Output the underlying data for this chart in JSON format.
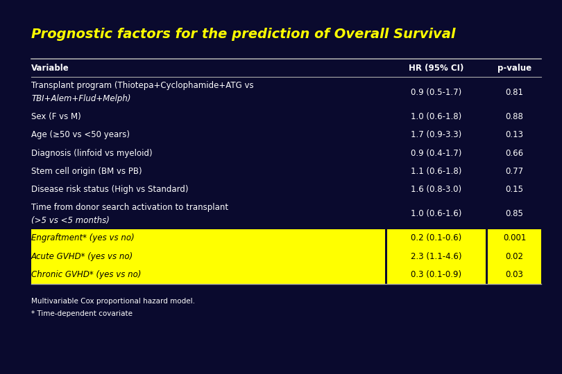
{
  "title": "Prognostic factors for the prediction of Overall Survival",
  "bg_color": "#0a0a2e",
  "title_color": "#ffff00",
  "title_fontsize": 14,
  "table_header": [
    "Variable",
    "HR (95% CI)",
    "p-value"
  ],
  "rows": [
    {
      "lines": [
        "Transplant program (Thiotepa+Cyclophamide+ATG vs",
        "TBI+Alem+Flud+Melph)"
      ],
      "hr": "0.9 (0.5-1.7)",
      "pval": "0.81",
      "highlight": false
    },
    {
      "lines": [
        "Sex (F vs M)"
      ],
      "hr": "1.0 (0.6-1.8)",
      "pval": "0.88",
      "highlight": false
    },
    {
      "lines": [
        "Age (≥50 vs <50 years)"
      ],
      "hr": "1.7 (0.9-3.3)",
      "pval": "0.13",
      "highlight": false
    },
    {
      "lines": [
        "Diagnosis (linfoid vs myeloid)"
      ],
      "hr": "0.9 (0.4-1.7)",
      "pval": "0.66",
      "highlight": false
    },
    {
      "lines": [
        "Stem cell origin (BM vs PB)"
      ],
      "hr": "1.1 (0.6-1.8)",
      "pval": "0.77",
      "highlight": false
    },
    {
      "lines": [
        "Disease risk status (High vs Standard)"
      ],
      "hr": "1.6 (0.8-3.0)",
      "pval": "0.15",
      "highlight": false
    },
    {
      "lines": [
        "Time from donor search activation to transplant",
        "(>5 vs <5 months)"
      ],
      "hr": "1.0 (0.6-1.6)",
      "pval": "0.85",
      "highlight": false
    },
    {
      "lines": [
        "Engraftment* (yes vs no)"
      ],
      "hr": "0.2 (0.1-0.6)",
      "pval": "0.001",
      "highlight": true
    },
    {
      "lines": [
        "Acute GVHD* (yes vs no)"
      ],
      "hr": "2.3 (1.1-4.6)",
      "pval": "0.02",
      "highlight": true
    },
    {
      "lines": [
        "Chronic GVHD* (yes vs no)"
      ],
      "hr": "0.3 (0.1-0.9)",
      "pval": "0.03",
      "highlight": true
    }
  ],
  "footer_lines": [
    "Multivariable Cox proportional hazard model.",
    "* Time-dependent covariate"
  ],
  "text_color": "#ffffff",
  "highlight_bg": "#ffff00",
  "highlight_text": "#000000",
  "line_color": "#aaaaaa"
}
